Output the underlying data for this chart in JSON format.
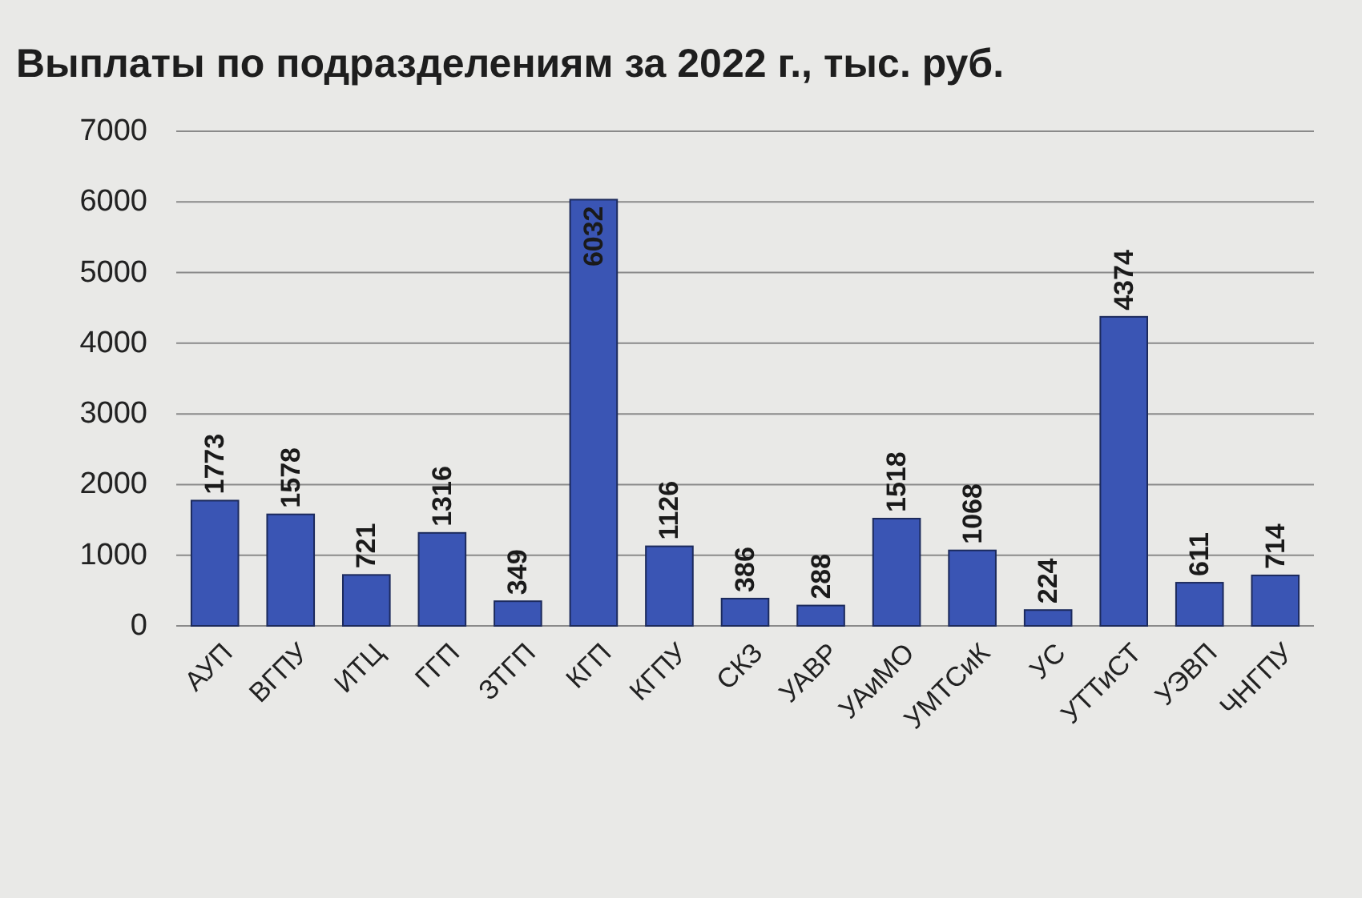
{
  "chart_data": {
    "type": "bar",
    "title": "Выплаты по подразделениям за 2022 г., тыс. руб.",
    "categories": [
      "АУП",
      "ВГПУ",
      "ИТЦ",
      "ГГП",
      "ЗТГП",
      "КГП",
      "КГПУ",
      "СКЗ",
      "УАВР",
      "УАиМО",
      "УМТСиК",
      "УС",
      "УТТиСТ",
      "УЭВП",
      "ЧНГПУ"
    ],
    "values": [
      1773,
      1578,
      721,
      1316,
      349,
      6032,
      1126,
      386,
      288,
      1518,
      1068,
      224,
      4374,
      611,
      714
    ],
    "color": "#3a55b4",
    "ylim": [
      0,
      7000
    ],
    "yticks": [
      0,
      1000,
      2000,
      3000,
      4000,
      5000,
      6000,
      7000
    ],
    "grid": "y",
    "data_labels": true
  }
}
